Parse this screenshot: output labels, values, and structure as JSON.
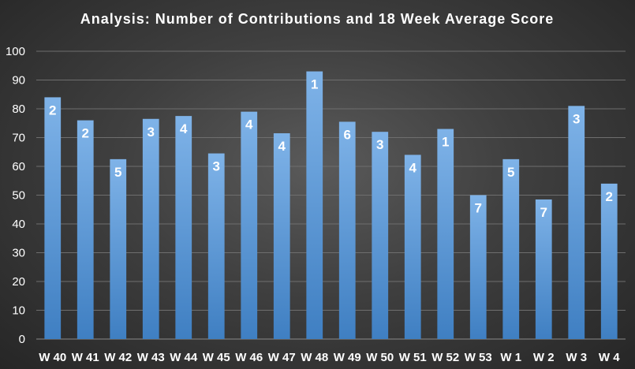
{
  "chart_data": {
    "type": "bar",
    "title": "Analysis: Number of Contributions and 18 Week Average Score",
    "xlabel": "",
    "ylabel": "",
    "ylim": [
      0,
      100
    ],
    "yticks": [
      0,
      10,
      20,
      30,
      40,
      50,
      60,
      70,
      80,
      90,
      100
    ],
    "grid": true,
    "legend": "none",
    "categories": [
      "W 40",
      "W 41",
      "W 42",
      "W 43",
      "W 44",
      "W 45",
      "W 46",
      "W 47",
      "W 48",
      "W 49",
      "W 50",
      "W 51",
      "W 52",
      "W 53",
      "W 1",
      "W 2",
      "W 3",
      "W 4"
    ],
    "values": [
      84,
      76,
      62.5,
      76.5,
      77.5,
      64.5,
      79,
      71.5,
      93,
      75.5,
      72,
      64,
      73,
      50,
      62.5,
      48.5,
      81,
      54
    ],
    "data_labels": [
      "2",
      "2",
      "5",
      "3",
      "4",
      "3",
      "4",
      "4",
      "1",
      "6",
      "3",
      "4",
      "1",
      "7",
      "5",
      "7",
      "3",
      "2"
    ],
    "colors": {
      "bar_top": "#7fb3e8",
      "bar_bottom": "#3f7fc2",
      "text": "#ffffff",
      "grid": "#6e6e6e"
    }
  }
}
